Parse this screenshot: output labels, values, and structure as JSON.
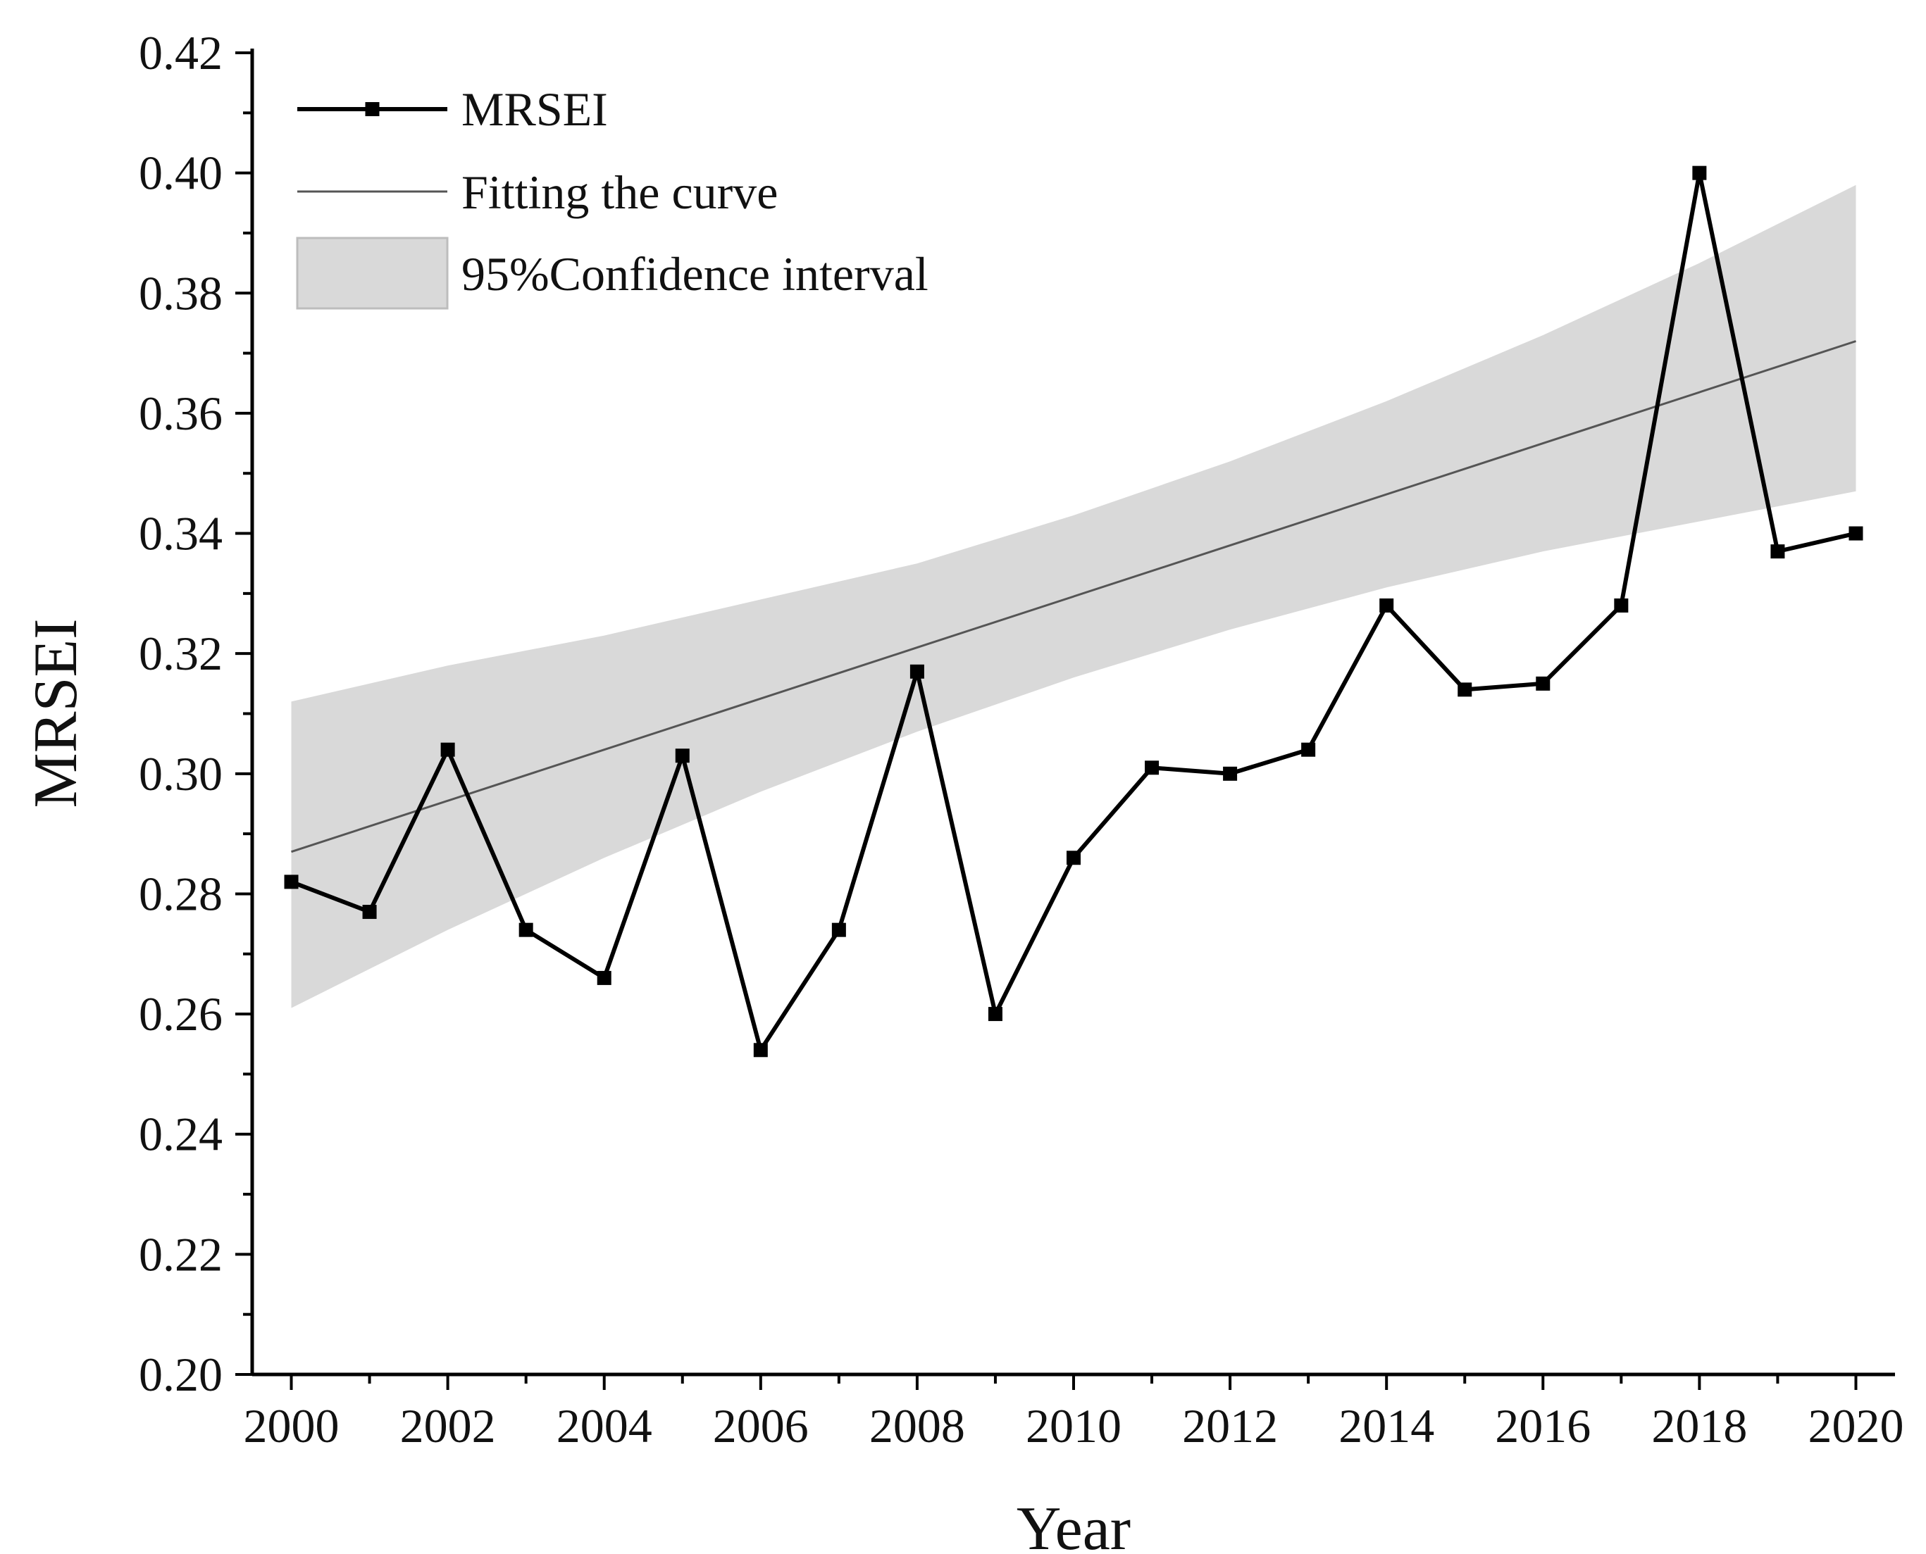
{
  "chart_data": {
    "type": "line",
    "title": "",
    "xlabel": "Year",
    "ylabel": "MRSEI",
    "xlim": [
      1999.5,
      2020.5
    ],
    "ylim": [
      0.2,
      0.42
    ],
    "x_ticks": [
      2000,
      2002,
      2004,
      2006,
      2008,
      2010,
      2012,
      2014,
      2016,
      2018,
      2020
    ],
    "x_tick_labels": [
      "2000",
      "2002",
      "2004",
      "2006",
      "2008",
      "2010",
      "2012",
      "2014",
      "2016",
      "2018",
      "2020"
    ],
    "y_ticks": [
      0.2,
      0.22,
      0.24,
      0.26,
      0.28,
      0.3,
      0.32,
      0.34,
      0.36,
      0.38,
      0.4,
      0.42
    ],
    "y_tick_labels": [
      "0.20",
      "0.22",
      "0.24",
      "0.26",
      "0.28",
      "0.30",
      "0.32",
      "0.34",
      "0.36",
      "0.38",
      "0.40",
      "0.42"
    ],
    "grid": false,
    "legend_position": "top-left",
    "series": [
      {
        "name": "MRSEI",
        "kind": "line-marker",
        "color": "#000000",
        "x": [
          2000,
          2001,
          2002,
          2003,
          2004,
          2005,
          2006,
          2007,
          2008,
          2009,
          2010,
          2011,
          2012,
          2013,
          2014,
          2015,
          2016,
          2017,
          2018,
          2019,
          2020
        ],
        "values": [
          0.282,
          0.277,
          0.304,
          0.274,
          0.266,
          0.303,
          0.254,
          0.274,
          0.317,
          0.26,
          0.286,
          0.301,
          0.3,
          0.304,
          0.328,
          0.314,
          0.315,
          0.328,
          0.4,
          0.337,
          0.34
        ]
      },
      {
        "name": "Fitting the curve",
        "kind": "fit-line",
        "color": "#555555",
        "x": [
          2000,
          2004,
          2008,
          2012,
          2016,
          2020
        ],
        "values": [
          0.287,
          0.304,
          0.321,
          0.338,
          0.355,
          0.372
        ]
      },
      {
        "name": "95%Confidence interval",
        "kind": "band",
        "color": "#d9d9d9",
        "x": [
          2000,
          2002,
          2004,
          2006,
          2008,
          2010,
          2012,
          2014,
          2016,
          2018,
          2020
        ],
        "upper": [
          0.312,
          0.318,
          0.323,
          0.329,
          0.335,
          0.343,
          0.352,
          0.362,
          0.373,
          0.385,
          0.398
        ],
        "lower": [
          0.261,
          0.274,
          0.286,
          0.297,
          0.307,
          0.316,
          0.324,
          0.331,
          0.337,
          0.342,
          0.347
        ]
      }
    ]
  }
}
